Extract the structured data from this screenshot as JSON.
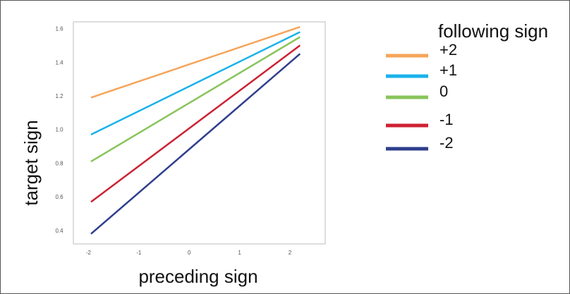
{
  "chart_data": {
    "type": "line",
    "title": "",
    "xlabel": "preceding sign",
    "ylabel": "target sign",
    "xlim": [
      -2.3,
      2.7
    ],
    "ylim": [
      0.32,
      1.64
    ],
    "xticks": [
      -2,
      -1,
      0,
      1,
      2
    ],
    "yticks": [
      0.4,
      0.6,
      0.8,
      1.0,
      1.2,
      1.4,
      1.6
    ],
    "ytick_labels": [
      "0.4",
      "0.6",
      "0.8",
      "1.0",
      "1.2",
      "1.4",
      "1.6"
    ],
    "grid": false,
    "legend_title": "following sign",
    "legend_position": "right",
    "x": [
      -1.95,
      2.2
    ],
    "series": [
      {
        "name": "+2",
        "color": "#f5a55a",
        "values": [
          1.19,
          1.61
        ]
      },
      {
        "name": "+1",
        "color": "#1ab2ea",
        "values": [
          0.97,
          1.58
        ]
      },
      {
        "name": "0",
        "color": "#88c45a",
        "values": [
          0.81,
          1.55
        ]
      },
      {
        "name": "-1",
        "color": "#cc2233",
        "values": [
          0.57,
          1.5
        ]
      },
      {
        "name": "-2",
        "color": "#2e3e8c",
        "values": [
          0.38,
          1.45
        ]
      }
    ]
  }
}
